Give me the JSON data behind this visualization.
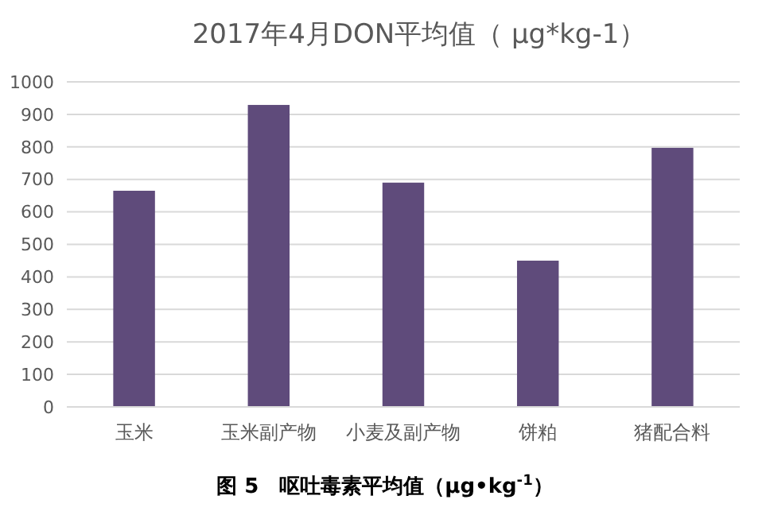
{
  "chart_data": {
    "type": "bar",
    "title": "2017年4月DON平均值（ μg*kg-1）",
    "categories": [
      "玉米",
      "玉米副产物",
      "小麦及副产物",
      "饼粕",
      "猪配合料"
    ],
    "values": [
      665,
      929,
      690,
      450,
      797
    ],
    "color": "#5f4b7b",
    "ylim": [
      0,
      1000
    ],
    "yticks": [
      0,
      100,
      200,
      300,
      400,
      500,
      600,
      700,
      800,
      900,
      1000
    ],
    "grid": "y",
    "annotations": [
      "图 5　呕吐毒素平均值（μg•kg$^{-1}$）"
    ]
  }
}
